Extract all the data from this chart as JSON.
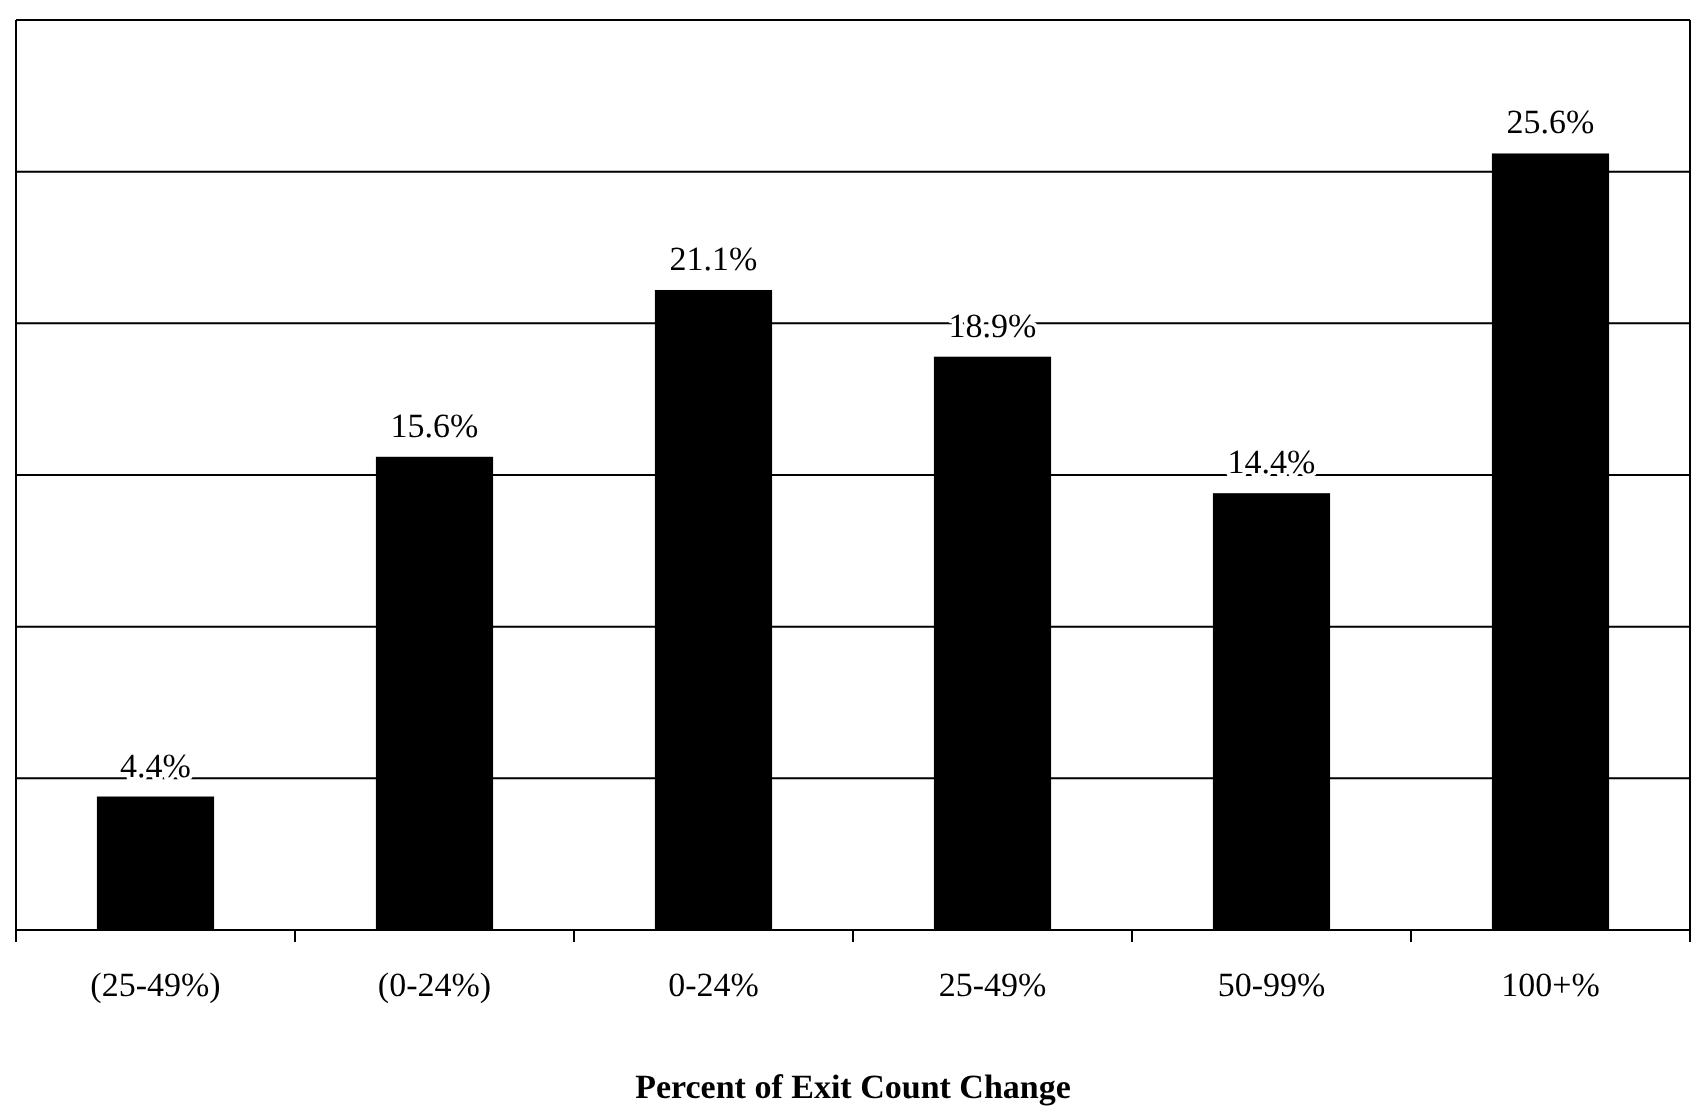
{
  "chart_data": {
    "type": "bar",
    "xlabel": "Percent of Exit Count Change",
    "categories": [
      "(25-49%)",
      "(0-24%)",
      "0-24%",
      "25-49%",
      "50-99%",
      "100+%"
    ],
    "values": [
      4.4,
      15.6,
      21.1,
      18.9,
      14.4,
      25.6
    ],
    "value_labels": [
      "4.4%",
      "15.6%",
      "21.1%",
      "18.9%",
      "14.4%",
      "25.6%"
    ],
    "color": "#000000",
    "ylim": [
      0,
      30
    ],
    "yticks": [
      {
        "value": 0,
        "label": null
      },
      {
        "value": 5,
        "label": null
      },
      {
        "value": 10,
        "label": null
      },
      {
        "value": 15,
        "label": null
      },
      {
        "value": 20,
        "label": null
      },
      {
        "value": 25,
        "label": null
      },
      {
        "value": 30,
        "label": null
      }
    ],
    "grid": "y",
    "tick_labels": "x"
  }
}
